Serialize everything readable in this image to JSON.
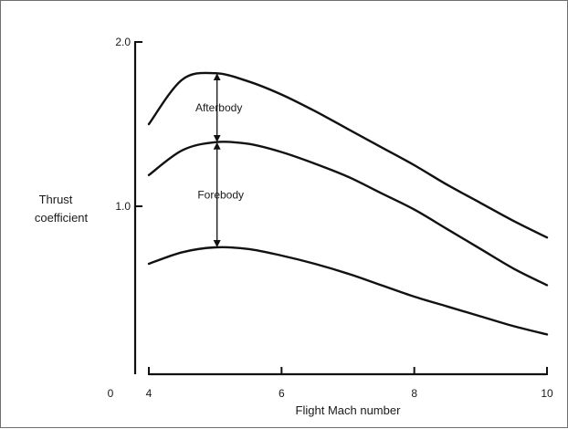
{
  "chart_data": {
    "type": "line",
    "x": [
      4,
      4.5,
      5,
      5.5,
      6,
      6.5,
      7,
      7.5,
      8,
      8.5,
      9,
      9.5,
      10
    ],
    "series": [
      {
        "values": [
          1.5,
          1.77,
          1.81,
          1.76,
          1.68,
          1.58,
          1.47,
          1.36,
          1.25,
          1.13,
          1.02,
          0.91,
          0.81
        ]
      },
      {
        "values": [
          1.19,
          1.34,
          1.39,
          1.38,
          1.33,
          1.26,
          1.18,
          1.08,
          0.98,
          0.86,
          0.74,
          0.62,
          0.52
        ]
      },
      {
        "values": [
          0.65,
          0.72,
          0.75,
          0.74,
          0.7,
          0.65,
          0.59,
          0.52,
          0.45,
          0.39,
          0.33,
          0.27,
          0.22
        ]
      }
    ],
    "x_ticks": [
      "4",
      "6",
      "8",
      "10"
    ],
    "x_tick_values": [
      4,
      6,
      8,
      10
    ],
    "y_ticks": [
      "1.0",
      "2.0"
    ],
    "y_tick_values": [
      1.0,
      2.0
    ],
    "origin_label": "0",
    "xlabel": "Flight Mach number",
    "ylabel_line1": "Thrust",
    "ylabel_line2": "coefficient",
    "xlim": [
      4,
      10
    ],
    "ylim": [
      0,
      2.0
    ],
    "grid": false,
    "annotations": [
      {
        "text": "Afterbody",
        "x": 5,
        "y_top": 1.81,
        "y_bottom": 1.39
      },
      {
        "text": "Forebody",
        "x": 5,
        "y_top": 1.39,
        "y_bottom": 0.75
      }
    ],
    "line_color": "#111111"
  }
}
